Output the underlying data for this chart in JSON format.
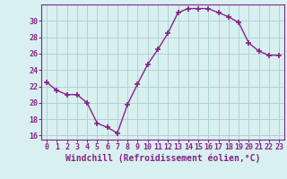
{
  "x": [
    0,
    1,
    2,
    3,
    4,
    5,
    6,
    7,
    8,
    9,
    10,
    11,
    12,
    13,
    14,
    15,
    16,
    17,
    18,
    19,
    20,
    21,
    22,
    23
  ],
  "y": [
    22.5,
    21.5,
    21.0,
    21.0,
    20.0,
    17.5,
    17.0,
    16.3,
    19.8,
    22.3,
    24.7,
    26.5,
    28.5,
    31.0,
    31.5,
    31.5,
    31.5,
    31.0,
    30.5,
    29.8,
    27.3,
    26.3,
    25.8,
    25.8
  ],
  "line_color": "#882288",
  "marker": "+",
  "marker_size": 5,
  "line_width": 1.0,
  "bg_color": "#d8f0f0",
  "grid_color": "#aacece",
  "xlabel": "Windchill (Refroidissement éolien,°C)",
  "xlabel_fontsize": 7,
  "tick_fontsize": 6,
  "ylim": [
    15.5,
    32.0
  ],
  "yticks": [
    16,
    18,
    20,
    22,
    24,
    26,
    28,
    30
  ],
  "xlim": [
    -0.5,
    23.5
  ],
  "xticks": [
    0,
    1,
    2,
    3,
    4,
    5,
    6,
    7,
    8,
    9,
    10,
    11,
    12,
    13,
    14,
    15,
    16,
    17,
    18,
    19,
    20,
    21,
    22,
    23
  ]
}
